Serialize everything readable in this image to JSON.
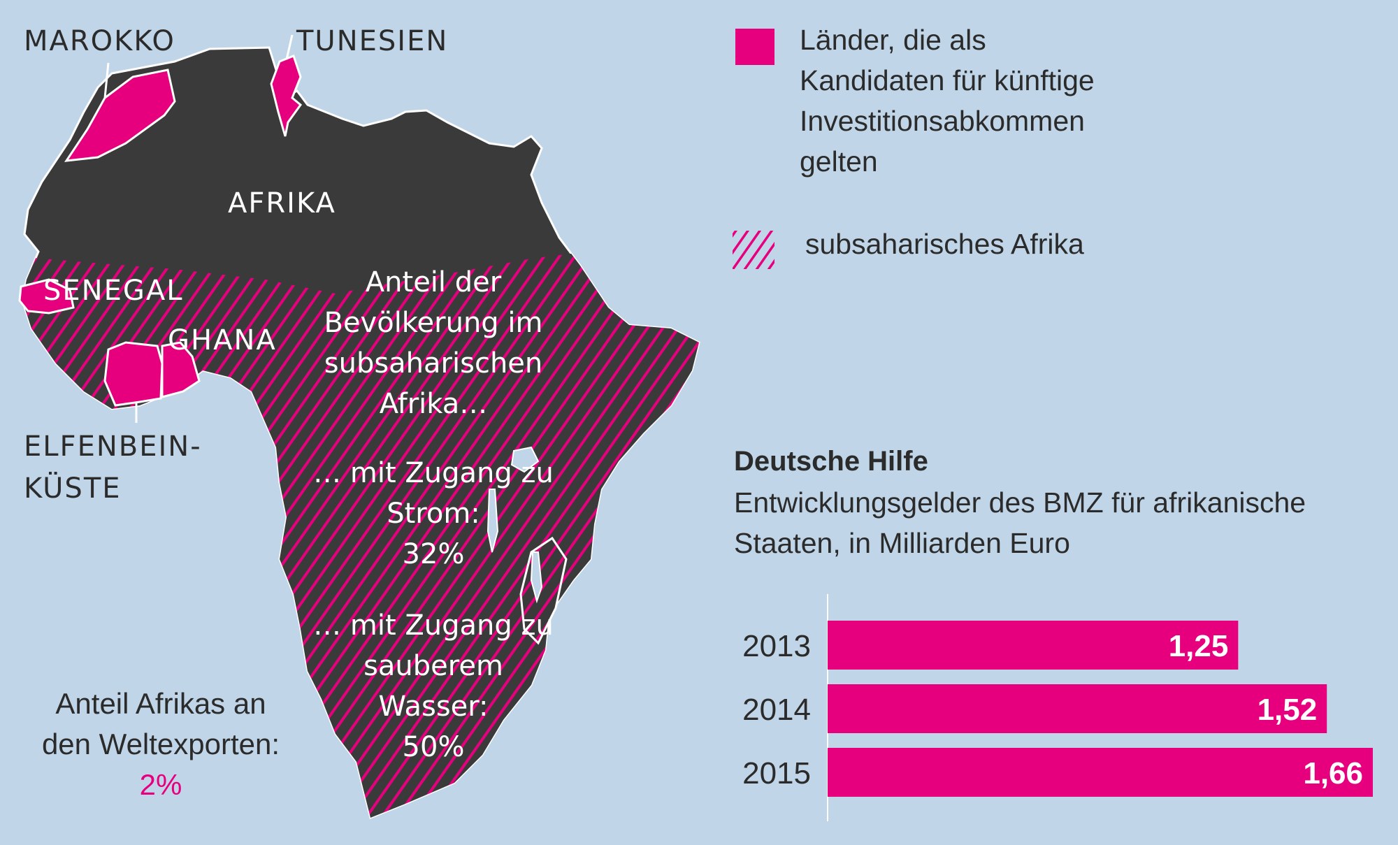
{
  "colors": {
    "background": "#c0d6e8",
    "map_land": "#3a3a3a",
    "accent": "#e6007e",
    "text": "#2b2b2b",
    "text_light": "#ffffff"
  },
  "map": {
    "labels": {
      "marokko": "MAROKKO",
      "tunesien": "TUNESIEN",
      "afrika": "AFRIKA",
      "senegal": "SENEGAL",
      "ghana": "GHANA",
      "elfenbein_line1": "ELFENBEIN-",
      "elfenbein_line2": "KÜSTE"
    },
    "population_note": {
      "line1": "Anteil der",
      "line2": "Bevölkerung im",
      "line3": "subsaharischen",
      "line4": "Afrika…"
    },
    "electricity": {
      "line1": "… mit Zugang zu",
      "line2": "Strom:",
      "value": "32%"
    },
    "water": {
      "line1": "… mit Zugang zu",
      "line2": "sauberem",
      "line3": "Wasser:",
      "value": "50%"
    }
  },
  "exports_note": {
    "line1": "Anteil Afrikas an",
    "line2": "den Weltexporten:",
    "value": "2%"
  },
  "legend": {
    "candidates": {
      "line1": "Länder, die als",
      "line2": "Kandidaten für künftige",
      "line3": "Investitionsabkommen",
      "line4": "gelten",
      "swatch_icon": "solid-magenta-square"
    },
    "subsaharan": {
      "label": "subsaharisches Afrika",
      "swatch_icon": "hatched-stripes"
    }
  },
  "chart_data": {
    "type": "bar",
    "orientation": "horizontal",
    "title": "Deutsche Hilfe",
    "subtitle": "Entwicklungsgelder des BMZ für afrikanische Staaten, in Milliarden Euro",
    "categories": [
      "2013",
      "2014",
      "2015"
    ],
    "values": [
      1.25,
      1.52,
      1.66
    ],
    "value_labels": [
      "1,25",
      "1,52",
      "1,66"
    ],
    "xlim": [
      0,
      1.66
    ],
    "bar_color": "#e6007e",
    "grid": false,
    "legend": "none"
  }
}
